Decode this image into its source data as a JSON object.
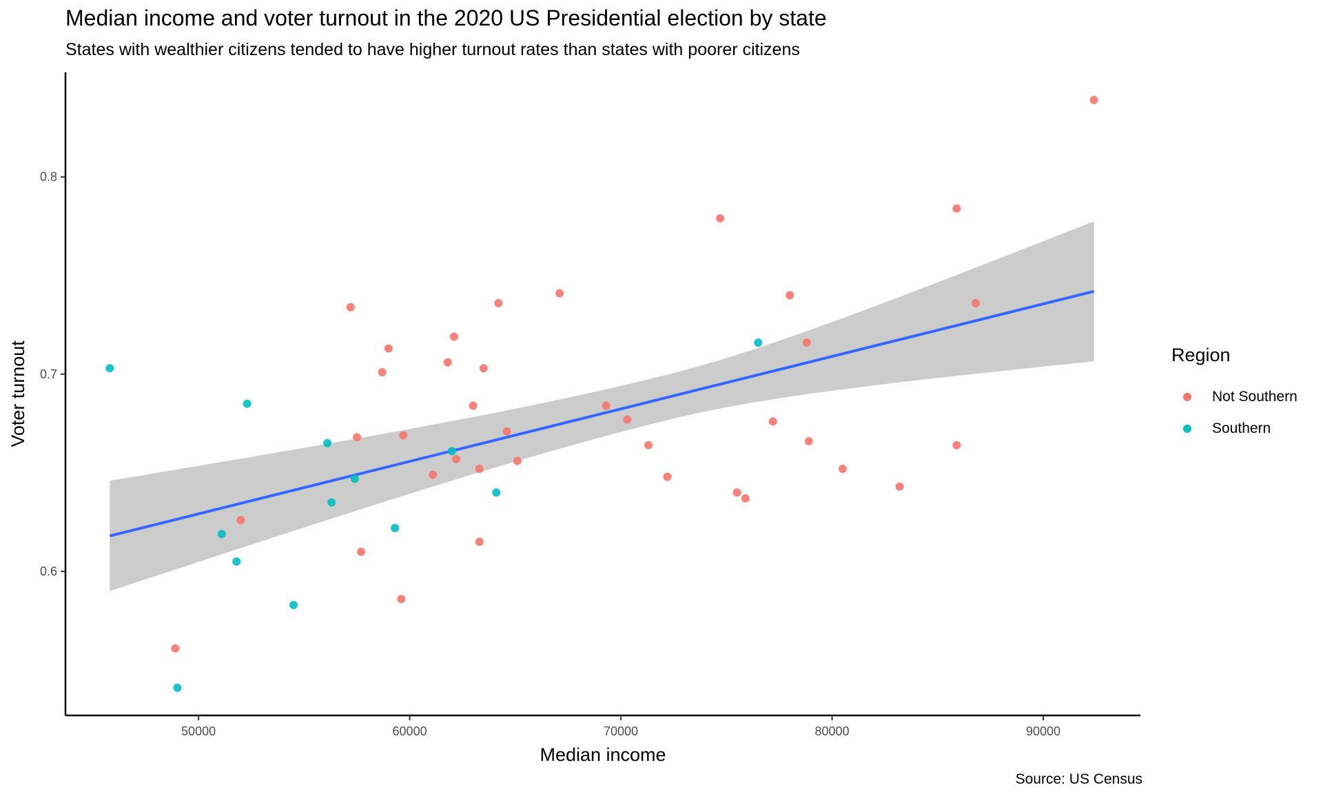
{
  "title": "Median income and voter turnout in the 2020 US Presidential election by state",
  "subtitle": "States with wealthier citizens tended to have higher turnout rates than states with poorer citizens",
  "caption": "Source: US Census",
  "legend": {
    "title": "Region",
    "items": [
      {
        "label": "Not Southern",
        "color": "#F8766D"
      },
      {
        "label": "Southern",
        "color": "#00BFC4"
      }
    ]
  },
  "chart_data": {
    "type": "scatter",
    "title": "Median income and voter turnout in the 2020 US Presidential election by state",
    "subtitle": "States with wealthier citizens tended to have higher turnout rates than states with poorer citizens",
    "xlabel": "Median income",
    "ylabel": "Voter turnout",
    "xlim": [
      43700,
      94600
    ],
    "ylim": [
      0.527,
      0.853
    ],
    "xticks": [
      50000,
      60000,
      70000,
      80000,
      90000
    ],
    "xtick_labels": [
      "50000",
      "60000",
      "70000",
      "80000",
      "90000"
    ],
    "yticks": [
      0.6,
      0.7,
      0.8
    ],
    "ytick_labels": [
      "0.6",
      "0.7",
      "0.8"
    ],
    "grid": false,
    "legend_position": "right",
    "series": [
      {
        "name": "Not Southern",
        "color": "#F8766D",
        "points": [
          [
            57200,
            0.734
          ],
          [
            59000,
            0.713
          ],
          [
            58700,
            0.701
          ],
          [
            62100,
            0.719
          ],
          [
            61800,
            0.706
          ],
          [
            63500,
            0.703
          ],
          [
            64200,
            0.736
          ],
          [
            67100,
            0.741
          ],
          [
            63000,
            0.684
          ],
          [
            57500,
            0.668
          ],
          [
            59700,
            0.669
          ],
          [
            64600,
            0.671
          ],
          [
            61100,
            0.649
          ],
          [
            62200,
            0.657
          ],
          [
            63300,
            0.652
          ],
          [
            65100,
            0.656
          ],
          [
            69300,
            0.684
          ],
          [
            70300,
            0.677
          ],
          [
            71300,
            0.664
          ],
          [
            72200,
            0.648
          ],
          [
            74700,
            0.779
          ],
          [
            78000,
            0.74
          ],
          [
            78800,
            0.716
          ],
          [
            77200,
            0.676
          ],
          [
            78900,
            0.666
          ],
          [
            75500,
            0.64
          ],
          [
            75900,
            0.637
          ],
          [
            80500,
            0.652
          ],
          [
            83200,
            0.643
          ],
          [
            85900,
            0.784
          ],
          [
            85900,
            0.664
          ],
          [
            86800,
            0.736
          ],
          [
            92400,
            0.839
          ],
          [
            52000,
            0.626
          ],
          [
            57700,
            0.61
          ],
          [
            63300,
            0.615
          ],
          [
            59600,
            0.586
          ],
          [
            48900,
            0.561
          ]
        ]
      },
      {
        "name": "Southern",
        "color": "#00BFC4",
        "points": [
          [
            45800,
            0.703
          ],
          [
            52300,
            0.685
          ],
          [
            56100,
            0.665
          ],
          [
            57400,
            0.647
          ],
          [
            56300,
            0.635
          ],
          [
            51100,
            0.619
          ],
          [
            51800,
            0.605
          ],
          [
            54500,
            0.583
          ],
          [
            59300,
            0.622
          ],
          [
            62000,
            0.661
          ],
          [
            64100,
            0.64
          ],
          [
            49000,
            0.541
          ],
          [
            76500,
            0.716
          ]
        ]
      }
    ],
    "trend_line": {
      "method": "linear regression",
      "color": "#3366FF",
      "x": [
        45800,
        92400
      ],
      "y": [
        0.618,
        0.742
      ],
      "ci_lower": [
        0.59,
        0.707
      ],
      "ci_upper": [
        0.646,
        0.778
      ],
      "ci_fill": "#CCCCCC"
    }
  }
}
